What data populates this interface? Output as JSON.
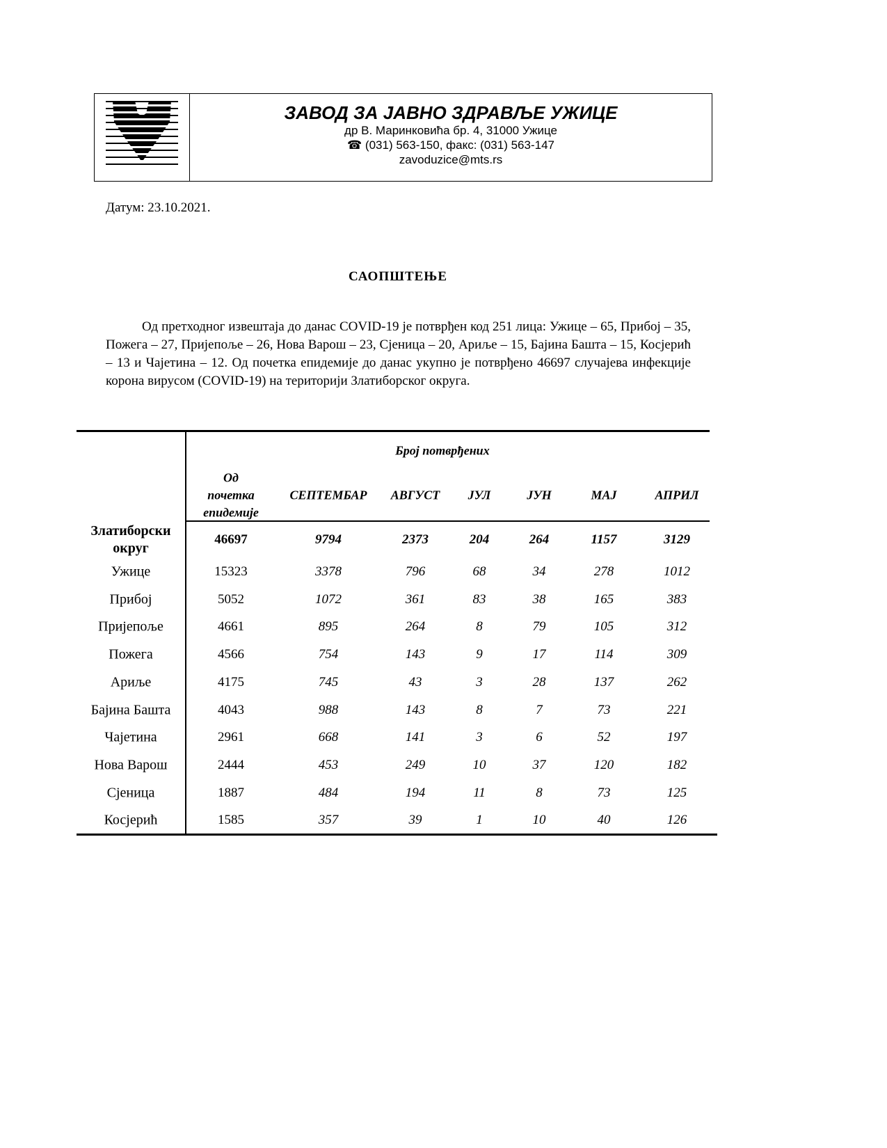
{
  "header": {
    "org_name": "ЗАВОД ЗА ЈАВНО ЗДРАВЉЕ УЖИЦЕ",
    "address": "др В. Маринковића бр. 4, 31000 Ужице",
    "phone_icon": "telephone-icon",
    "phone": "(031) 563-150, факс: (031) 563-147",
    "email": "zavoduzice@mts.rs"
  },
  "date": "Датум: 23.10.2021.",
  "title": "САОПШТЕЊЕ",
  "paragraph": "Од претходног извештаја до данас COVID-19 је потврђен код 251 лица: Ужице – 65, Прибој – 35, Пожега – 27, Пријепоље – 26, Нова Варош – 23, Сјеница – 20, Ариље – 15, Бајина Башта – 15, Косјерић – 13 и Чајетина – 12. Од почетка епидемије до данас укупно је потврђено 46697 случајева инфекције корона вирусом (COVID-19) на територији Златиборског округа.",
  "table": {
    "group_header": "Број потврђених",
    "columns": [
      "Од\nпочетка\nепидемије",
      "СЕПТЕМБАР",
      "АВГУСТ",
      "ЈУЛ",
      "ЈУН",
      "МАЈ",
      "АПРИЛ"
    ],
    "total_row": {
      "name": "Златиборски\nокруг",
      "values": [
        "46697",
        "9794",
        "2373",
        "204",
        "264",
        "1157",
        "3129"
      ]
    },
    "rows": [
      {
        "name": "Ужице",
        "values": [
          "15323",
          "3378",
          "796",
          "68",
          "34",
          "278",
          "1012"
        ]
      },
      {
        "name": "Прибој",
        "values": [
          "5052",
          "1072",
          "361",
          "83",
          "38",
          "165",
          "383"
        ]
      },
      {
        "name": "Пријепоље",
        "values": [
          "4661",
          "895",
          "264",
          "8",
          "79",
          "105",
          "312"
        ]
      },
      {
        "name": "Пожега",
        "values": [
          "4566",
          "754",
          "143",
          "9",
          "17",
          "114",
          "309"
        ]
      },
      {
        "name": "Ариље",
        "values": [
          "4175",
          "745",
          "43",
          "3",
          "28",
          "137",
          "262"
        ]
      },
      {
        "name": "Бајина Башта",
        "values": [
          "4043",
          "988",
          "143",
          "8",
          "7",
          "73",
          "221"
        ]
      },
      {
        "name": "Чајетина",
        "values": [
          "2961",
          "668",
          "141",
          "3",
          "6",
          "52",
          "197"
        ]
      },
      {
        "name": "Нова Варош",
        "values": [
          "2444",
          "453",
          "249",
          "10",
          "37",
          "120",
          "182"
        ]
      },
      {
        "name": "Сјеница",
        "values": [
          "1887",
          "484",
          "194",
          "11",
          "8",
          "73",
          "125"
        ]
      },
      {
        "name": "Косјерић",
        "values": [
          "1585",
          "357",
          "39",
          "1",
          "10",
          "40",
          "126"
        ]
      }
    ]
  }
}
